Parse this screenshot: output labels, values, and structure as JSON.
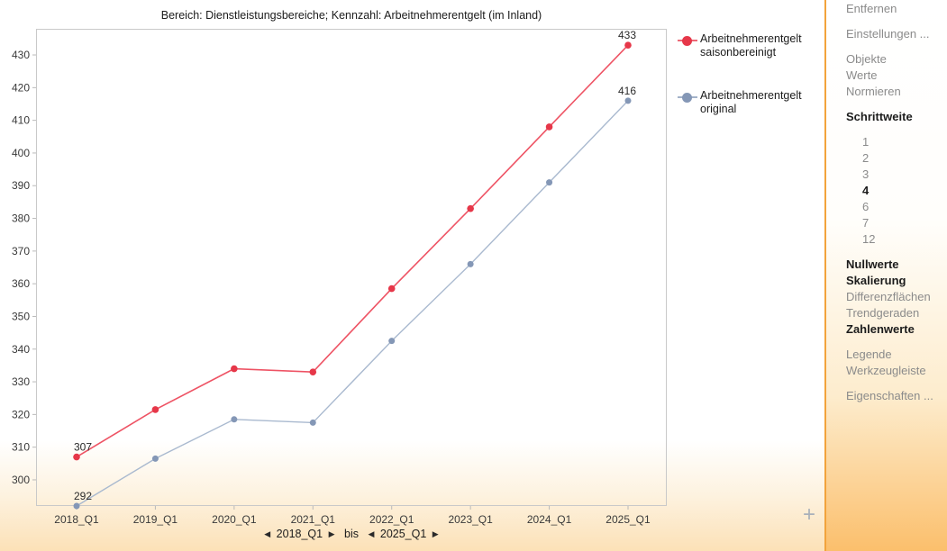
{
  "title": "Bereich: Dienstleistungsbereiche; Kennzahl: Arbeitnehmerentgelt (im Inland)",
  "chart_data": {
    "type": "line",
    "title": "Bereich: Dienstleistungsbereiche; Kennzahl: Arbeitnehmerentgelt (im Inland)",
    "categories": [
      "2018_Q1",
      "2019_Q1",
      "2020_Q1",
      "2021_Q1",
      "2022_Q1",
      "2023_Q1",
      "2024_Q1",
      "2025_Q1"
    ],
    "series": [
      {
        "name": "Arbeitnehmerentgelt saisonbereinigt",
        "marker_color": "#e63749",
        "line_color": "#ee5364",
        "values": [
          307,
          321.5,
          334,
          333,
          358.5,
          383,
          408,
          433
        ],
        "first_label": "307",
        "last_label": "433"
      },
      {
        "name": "Arbeitnehmerentgelt original",
        "marker_color": "#8497b6",
        "line_color": "#a9b9cf",
        "values": [
          292,
          306.5,
          318.5,
          317.5,
          342.5,
          366,
          391,
          416
        ],
        "first_label": "292",
        "last_label": "416"
      }
    ],
    "yticks": [
      300,
      310,
      320,
      330,
      340,
      350,
      360,
      370,
      380,
      390,
      400,
      410,
      420,
      430
    ],
    "ylim": [
      292,
      438
    ],
    "grid": false,
    "legend_position": "right"
  },
  "legend": {
    "items": [
      {
        "line1": "Arbeitnehmerentgelt",
        "line2": "saisonbereinigt",
        "color": "#e63749"
      },
      {
        "line1": "Arbeitnehmerentgelt",
        "line2": "original",
        "color": "#8497b6"
      }
    ]
  },
  "range_selector": {
    "prev_icon": "◀",
    "next_icon": "▶",
    "from": "2018_Q1",
    "separator": "bis",
    "to": "2025_Q1"
  },
  "plus_icon": "+",
  "sidebar": {
    "items": [
      {
        "label": "Entfernen",
        "bold": false,
        "indent": false,
        "gap": false
      },
      {
        "label": "Einstellungen ...",
        "bold": false,
        "indent": false,
        "gap": true
      },
      {
        "label": "Objekte",
        "bold": false,
        "indent": false,
        "gap": true
      },
      {
        "label": "Werte",
        "bold": false,
        "indent": false,
        "gap": false
      },
      {
        "label": "Normieren",
        "bold": false,
        "indent": false,
        "gap": false
      },
      {
        "label": "Schrittweite",
        "bold": true,
        "indent": false,
        "gap": true
      },
      {
        "label": "1",
        "bold": false,
        "indent": true,
        "gap": true
      },
      {
        "label": "2",
        "bold": false,
        "indent": true,
        "gap": false
      },
      {
        "label": "3",
        "bold": false,
        "indent": true,
        "gap": false
      },
      {
        "label": "4",
        "bold": true,
        "indent": true,
        "gap": false
      },
      {
        "label": "6",
        "bold": false,
        "indent": true,
        "gap": false
      },
      {
        "label": "7",
        "bold": false,
        "indent": true,
        "gap": false
      },
      {
        "label": "12",
        "bold": false,
        "indent": true,
        "gap": false
      },
      {
        "label": "Nullwerte",
        "bold": true,
        "indent": false,
        "gap": true
      },
      {
        "label": "Skalierung",
        "bold": true,
        "indent": false,
        "gap": false
      },
      {
        "label": "Differenzflächen",
        "bold": false,
        "indent": false,
        "gap": false
      },
      {
        "label": "Trendgeraden",
        "bold": false,
        "indent": false,
        "gap": false
      },
      {
        "label": "Zahlenwerte",
        "bold": true,
        "indent": false,
        "gap": false
      },
      {
        "label": "Legende",
        "bold": false,
        "indent": false,
        "gap": true
      },
      {
        "label": "Werkzeugleiste",
        "bold": false,
        "indent": false,
        "gap": false
      },
      {
        "label": "Eigenschaften ...",
        "bold": false,
        "indent": false,
        "gap": true
      }
    ]
  }
}
